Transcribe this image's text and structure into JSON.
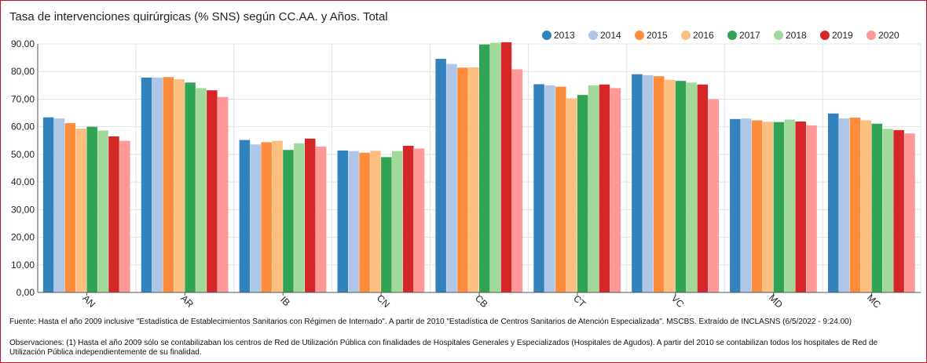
{
  "chart_data": {
    "type": "bar",
    "title": "Tasa de intervenciones quirúrgicas (% SNS) según CC.AA. y Años. Total",
    "xlabel": "",
    "ylabel": "",
    "ylim": [
      0,
      90
    ],
    "yticks": [
      "0,00",
      "10,00",
      "20,00",
      "30,00",
      "40,00",
      "50,00",
      "60,00",
      "70,00",
      "80,00",
      "90,00"
    ],
    "grid": true,
    "legend_position": "top-right",
    "categories": [
      "AN",
      "AR",
      "IB",
      "CN",
      "CB",
      "CT",
      "VC",
      "MD",
      "MC"
    ],
    "series": [
      {
        "name": "2013",
        "color": "#3182bd",
        "values": [
          63.4,
          77.8,
          55.2,
          51.4,
          84.6,
          75.4,
          79.0,
          62.8,
          64.8
        ]
      },
      {
        "name": "2014",
        "color": "#aec7e8",
        "values": [
          63.0,
          77.8,
          53.6,
          51.2,
          82.7,
          75.0,
          78.7,
          63.0,
          63.0
        ]
      },
      {
        "name": "2015",
        "color": "#fd8d3c",
        "values": [
          61.3,
          78.0,
          54.4,
          50.6,
          81.4,
          74.5,
          78.3,
          62.3,
          63.3
        ]
      },
      {
        "name": "2016",
        "color": "#fdbf80",
        "values": [
          59.3,
          77.2,
          54.9,
          51.3,
          81.5,
          70.3,
          77.0,
          61.8,
          62.3
        ]
      },
      {
        "name": "2017",
        "color": "#31a354",
        "values": [
          60.0,
          76.0,
          51.6,
          49.0,
          89.8,
          71.5,
          76.6,
          61.7,
          61.1
        ]
      },
      {
        "name": "2018",
        "color": "#a1d99b",
        "values": [
          58.6,
          74.0,
          54.0,
          51.2,
          90.4,
          75.0,
          76.0,
          62.6,
          59.2
        ]
      },
      {
        "name": "2019",
        "color": "#d62728",
        "values": [
          56.5,
          73.2,
          55.7,
          53.1,
          90.6,
          75.3,
          75.3,
          61.9,
          58.8
        ]
      },
      {
        "name": "2020",
        "color": "#ff9896",
        "values": [
          54.9,
          70.8,
          52.8,
          52.1,
          80.8,
          74.0,
          70.0,
          60.5,
          57.6
        ]
      }
    ]
  },
  "footer": {
    "source": "Fuente: Hasta el año 2009 inclusive \"Estadística de Establecimientos Sanitarios con Régimen de Internado\". A partir de 2010 \"Estadística de Centros Sanitarios de Atención Especializada\". MSCBS. Extraído de INCLASNS (6/5/2022 - 9:24.00)",
    "notes": "Observaciones: (1) Hasta el año 2009 sólo se contabilizaban los centros de Red de Utilización Pública con finalidades de Hospitales Generales y Especializados (Hospitales de Agudos). A partir del 2010 se contabilizan todos los hospitales de Red de Utilización Pública independientemente de su finalidad."
  }
}
